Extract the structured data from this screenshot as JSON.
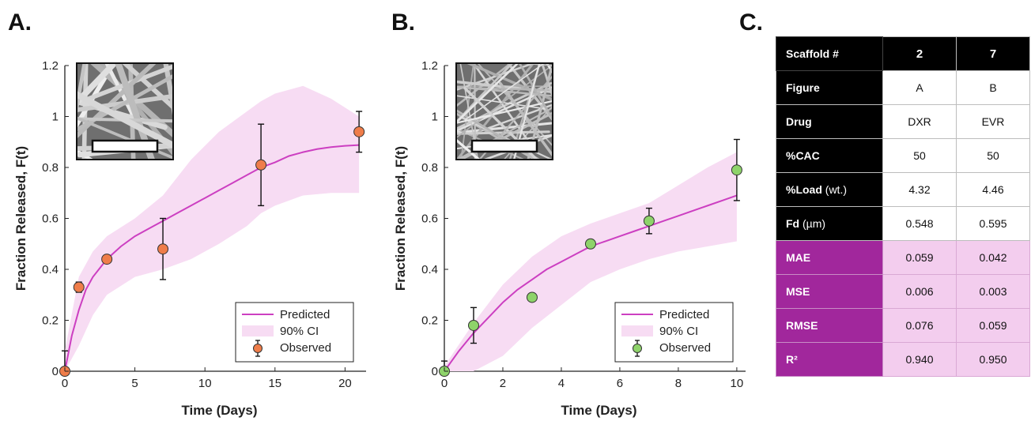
{
  "panels": {
    "A": "A.",
    "B": "B.",
    "C": "C."
  },
  "colors": {
    "predicted": "#cc3fc1",
    "ci_fill": "#f7dcf3",
    "observed_A": "#ef7d4a",
    "observed_B": "#8ed36a",
    "table_header": "#000000",
    "metric_header": "#a1279c",
    "metric_cell": "#f3cdee"
  },
  "chart_data": [
    {
      "panel": "A",
      "type": "line",
      "xlabel": "Time (Days)",
      "ylabel": "Fraction Released, F(t)",
      "xlim": [
        0,
        21.5
      ],
      "ylim": [
        0,
        1.2
      ],
      "xticks": [
        0,
        5,
        10,
        15,
        20
      ],
      "yticks": [
        0,
        0.2,
        0.4,
        0.6,
        0.8,
        1,
        1.2
      ],
      "grid": false,
      "legend_position": "bottom-right",
      "legend": [
        "Predicted",
        "90% CI",
        "Observed"
      ],
      "inset": "SEM micrograph with scale bar",
      "series": [
        {
          "name": "Predicted",
          "x": [
            0,
            0.5,
            1,
            1.5,
            2,
            3,
            4,
            5,
            6,
            7,
            8,
            9,
            10,
            11,
            12,
            13,
            14,
            15,
            16,
            17,
            18,
            19,
            20,
            21
          ],
          "y": [
            0,
            0.14,
            0.24,
            0.32,
            0.37,
            0.44,
            0.49,
            0.53,
            0.56,
            0.59,
            0.62,
            0.65,
            0.68,
            0.71,
            0.74,
            0.77,
            0.8,
            0.82,
            0.845,
            0.86,
            0.872,
            0.88,
            0.885,
            0.888
          ]
        },
        {
          "name": "90% CI",
          "x": [
            0,
            1,
            2,
            3,
            5,
            7,
            9,
            11,
            13,
            14,
            15,
            17,
            19,
            21
          ],
          "upper": [
            0.08,
            0.37,
            0.47,
            0.53,
            0.6,
            0.69,
            0.83,
            0.94,
            1.02,
            1.06,
            1.09,
            1.12,
            1.07,
            1.0
          ],
          "lower": [
            0,
            0.1,
            0.22,
            0.3,
            0.37,
            0.4,
            0.44,
            0.5,
            0.57,
            0.62,
            0.65,
            0.69,
            0.7,
            0.7
          ]
        },
        {
          "name": "Observed",
          "x": [
            0,
            1,
            3,
            7,
            14,
            21
          ],
          "y": [
            0,
            0.33,
            0.44,
            0.48,
            0.81,
            0.94
          ],
          "err": [
            0.08,
            0.02,
            0.015,
            0.12,
            0.16,
            0.08
          ]
        }
      ]
    },
    {
      "panel": "B",
      "type": "line",
      "xlabel": "Time (Days)",
      "ylabel": "Fraction Released, F(t)",
      "xlim": [
        0,
        10.3
      ],
      "ylim": [
        0,
        1.2
      ],
      "xticks": [
        0,
        2,
        4,
        6,
        8,
        10
      ],
      "yticks": [
        0,
        0.2,
        0.4,
        0.6,
        0.8,
        1,
        1.2
      ],
      "grid": false,
      "legend_position": "bottom-right",
      "legend": [
        "Predicted",
        "90% CI",
        "Observed"
      ],
      "inset": "SEM micrograph with scale bar",
      "series": [
        {
          "name": "Predicted",
          "x": [
            0,
            0.5,
            1,
            1.5,
            2,
            2.5,
            3,
            3.5,
            4,
            4.5,
            5,
            5.5,
            6,
            6.5,
            7,
            7.5,
            8,
            8.5,
            9,
            9.5,
            10
          ],
          "y": [
            0,
            0.08,
            0.15,
            0.21,
            0.27,
            0.32,
            0.36,
            0.4,
            0.43,
            0.46,
            0.49,
            0.51,
            0.53,
            0.55,
            0.57,
            0.59,
            0.61,
            0.63,
            0.65,
            0.67,
            0.69
          ]
        },
        {
          "name": "90% CI",
          "x": [
            0,
            1,
            2,
            3,
            4,
            5,
            6,
            7,
            8,
            9,
            10
          ],
          "upper": [
            0.02,
            0.19,
            0.34,
            0.45,
            0.53,
            0.58,
            0.62,
            0.66,
            0.73,
            0.8,
            0.86
          ],
          "lower": [
            0,
            0,
            0.06,
            0.17,
            0.26,
            0.35,
            0.4,
            0.44,
            0.47,
            0.49,
            0.51
          ]
        },
        {
          "name": "Observed",
          "x": [
            0,
            1,
            3,
            5,
            7,
            10
          ],
          "y": [
            0,
            0.18,
            0.29,
            0.5,
            0.59,
            0.79
          ],
          "err": [
            0.04,
            0.07,
            0.01,
            0.01,
            0.05,
            0.12
          ]
        }
      ]
    }
  ],
  "table": {
    "header": [
      "Scaffold #",
      "2",
      "7"
    ],
    "rows": [
      {
        "label": "Figure",
        "unit": "",
        "values": [
          "A",
          "B"
        ],
        "metric": false
      },
      {
        "label": "Drug",
        "unit": "",
        "values": [
          "DXR",
          "EVR"
        ],
        "metric": false
      },
      {
        "label": "%CAC",
        "unit": "",
        "values": [
          "50",
          "50"
        ],
        "metric": false
      },
      {
        "label": "%Load",
        "unit": " (wt.)",
        "values": [
          "4.32",
          "4.46"
        ],
        "metric": false
      },
      {
        "label": "Fd",
        "unit": " (µm)",
        "values": [
          "0.548",
          "0.595"
        ],
        "metric": false
      },
      {
        "label": "MAE",
        "unit": "",
        "values": [
          "0.059",
          "0.042"
        ],
        "metric": true
      },
      {
        "label": "MSE",
        "unit": "",
        "values": [
          "0.006",
          "0.003"
        ],
        "metric": true
      },
      {
        "label": "RMSE",
        "unit": "",
        "values": [
          "0.076",
          "0.059"
        ],
        "metric": true
      },
      {
        "label": "R²",
        "unit": "",
        "values": [
          "0.940",
          "0.950"
        ],
        "metric": true
      }
    ]
  }
}
